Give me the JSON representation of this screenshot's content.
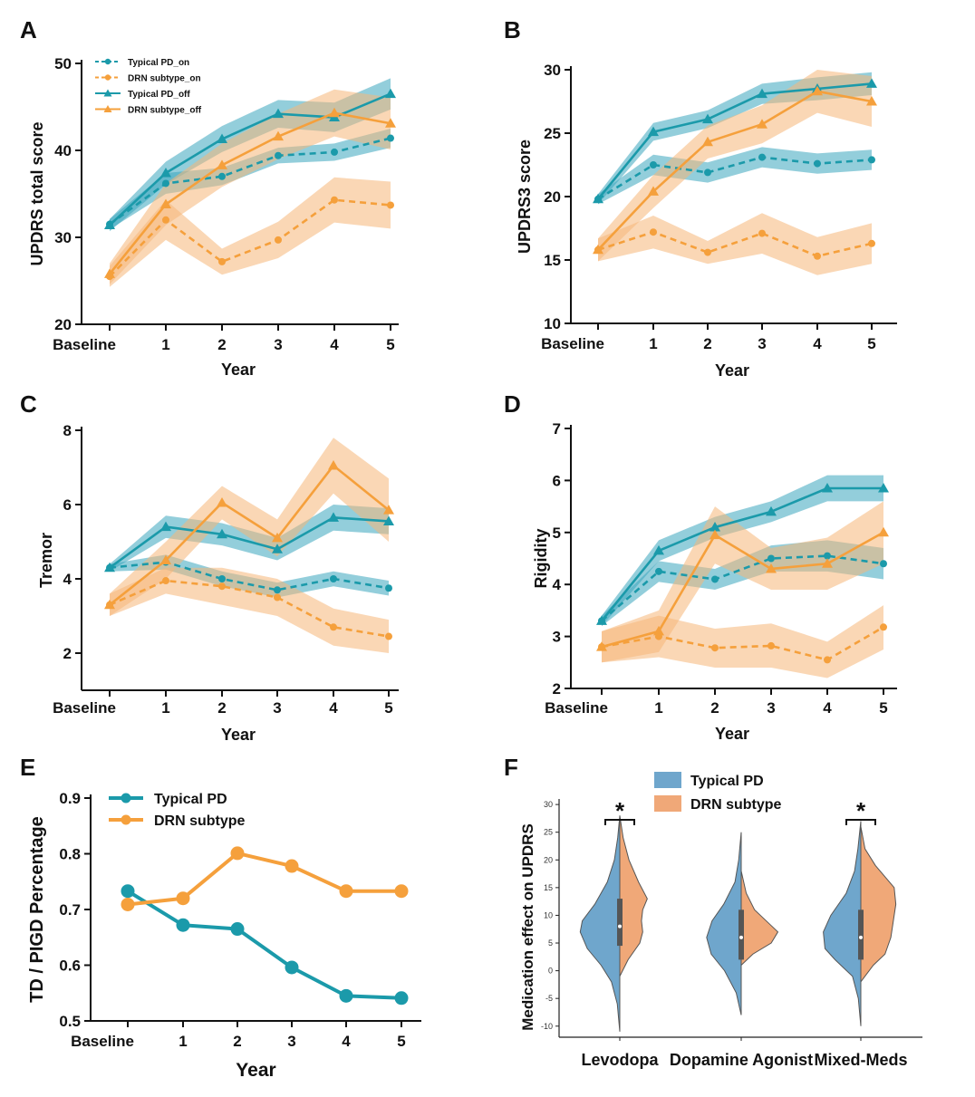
{
  "colors": {
    "typical": "#1b9aaa",
    "drn": "#f5a03c",
    "typical_band": "#3aa6bd",
    "drn_band": "#f6b679",
    "violin_typical": "#6fa6cc",
    "violin_drn": "#f0a878"
  },
  "panels": {
    "A": "A",
    "B": "B",
    "C": "C",
    "D": "D",
    "E": "E",
    "F": "F"
  },
  "chart_data": [
    {
      "panel": "A",
      "type": "line",
      "categories": [
        "Baseline",
        "1",
        "2",
        "3",
        "4",
        "5"
      ],
      "xlabel": "Year",
      "ylabel": "UPDRS total score",
      "ylim": [
        20,
        50
      ],
      "yticks": [
        20,
        30,
        40,
        50
      ],
      "legend": {
        "position": "top-left"
      },
      "series": [
        {
          "name": "Typical PD_on",
          "color": "typical",
          "dashed": true,
          "marker": "circle",
          "values": [
            31.5,
            36.2,
            37.0,
            39.4,
            39.8,
            41.4
          ],
          "lower": [
            30.9,
            35.0,
            36.0,
            38.5,
            38.8,
            40.3
          ],
          "upper": [
            32.1,
            37.4,
            38.0,
            40.3,
            40.8,
            42.5
          ]
        },
        {
          "name": "DRN subtype_on",
          "color": "drn",
          "dashed": true,
          "marker": "circle",
          "values": [
            25.5,
            32.0,
            27.2,
            29.7,
            34.3,
            33.7
          ],
          "lower": [
            24.3,
            29.7,
            25.7,
            27.6,
            31.7,
            31.0
          ],
          "upper": [
            26.7,
            34.3,
            28.7,
            31.8,
            36.9,
            36.4
          ]
        },
        {
          "name": "Typical PD_off",
          "color": "typical",
          "dashed": false,
          "marker": "triangle",
          "values": [
            31.4,
            37.4,
            41.3,
            44.2,
            43.8,
            46.5
          ],
          "lower": [
            30.7,
            36.1,
            39.8,
            42.6,
            42.1,
            44.7
          ],
          "upper": [
            32.1,
            38.7,
            42.8,
            45.8,
            45.5,
            48.3
          ]
        },
        {
          "name": "DRN subtype_off",
          "color": "drn",
          "dashed": false,
          "marker": "triangle",
          "values": [
            25.8,
            33.8,
            38.3,
            41.6,
            44.3,
            43.1
          ],
          "lower": [
            24.6,
            31.4,
            35.8,
            39.0,
            41.6,
            40.1
          ],
          "upper": [
            27.0,
            36.2,
            40.8,
            44.2,
            47.0,
            46.1
          ]
        }
      ]
    },
    {
      "panel": "B",
      "type": "line",
      "categories": [
        "Baseline",
        "1",
        "2",
        "3",
        "4",
        "5"
      ],
      "xlabel": "Year",
      "ylabel": "UPDRS3 score",
      "ylim": [
        10,
        30
      ],
      "yticks": [
        10,
        15,
        20,
        25,
        30
      ],
      "series": [
        {
          "name": "Typical PD_on",
          "color": "typical",
          "dashed": true,
          "marker": "circle",
          "values": [
            19.8,
            22.5,
            21.9,
            23.1,
            22.6,
            22.9
          ],
          "lower": [
            19.4,
            21.7,
            21.1,
            22.3,
            21.8,
            22.1
          ],
          "upper": [
            20.2,
            23.3,
            22.7,
            23.9,
            23.4,
            23.7
          ]
        },
        {
          "name": "DRN subtype_on",
          "color": "drn",
          "dashed": true,
          "marker": "circle",
          "values": [
            15.8,
            17.2,
            15.6,
            17.1,
            15.3,
            16.3
          ],
          "lower": [
            14.9,
            15.9,
            14.7,
            15.5,
            13.8,
            14.7
          ],
          "upper": [
            16.7,
            18.5,
            16.5,
            18.7,
            16.8,
            17.9
          ]
        },
        {
          "name": "Typical PD_off",
          "color": "typical",
          "dashed": false,
          "marker": "triangle",
          "values": [
            19.8,
            25.1,
            26.1,
            28.1,
            28.5,
            28.9
          ],
          "lower": [
            19.4,
            24.4,
            25.4,
            27.3,
            27.6,
            28.0
          ],
          "upper": [
            20.2,
            25.8,
            26.8,
            28.9,
            29.4,
            29.8
          ]
        },
        {
          "name": "DRN subtype_off",
          "color": "drn",
          "dashed": false,
          "marker": "triangle",
          "values": [
            15.8,
            20.4,
            24.3,
            25.7,
            28.3,
            27.5
          ],
          "lower": [
            14.9,
            19.1,
            23.0,
            24.2,
            26.6,
            25.5
          ],
          "upper": [
            16.7,
            21.7,
            25.6,
            27.2,
            30.0,
            29.5
          ]
        }
      ]
    },
    {
      "panel": "C",
      "type": "line",
      "categories": [
        "Baseline",
        "1",
        "2",
        "3",
        "4",
        "5"
      ],
      "xlabel": "Year",
      "ylabel": "Tremor",
      "ylim": [
        1,
        8
      ],
      "yticks": [
        2,
        4,
        6,
        8
      ],
      "series": [
        {
          "name": "Typical PD_on",
          "color": "typical",
          "dashed": true,
          "marker": "circle",
          "values": [
            4.3,
            4.45,
            4.0,
            3.7,
            4.0,
            3.75
          ],
          "lower": [
            4.2,
            4.25,
            3.8,
            3.5,
            3.8,
            3.55
          ],
          "upper": [
            4.4,
            4.65,
            4.2,
            3.9,
            4.2,
            3.95
          ]
        },
        {
          "name": "DRN subtype_on",
          "color": "drn",
          "dashed": true,
          "marker": "circle",
          "values": [
            3.3,
            3.95,
            3.8,
            3.5,
            2.7,
            2.45
          ],
          "lower": [
            3.0,
            3.6,
            3.3,
            3.0,
            2.2,
            2.0
          ],
          "upper": [
            3.6,
            4.3,
            4.3,
            4.0,
            3.2,
            2.9
          ]
        },
        {
          "name": "Typical PD_off",
          "color": "typical",
          "dashed": false,
          "marker": "triangle",
          "values": [
            4.3,
            5.4,
            5.2,
            4.8,
            5.65,
            5.55
          ],
          "lower": [
            4.2,
            5.1,
            4.9,
            4.5,
            5.3,
            5.2
          ],
          "upper": [
            4.4,
            5.7,
            5.5,
            5.1,
            6.0,
            5.9
          ]
        },
        {
          "name": "DRN subtype_off",
          "color": "drn",
          "dashed": false,
          "marker": "triangle",
          "values": [
            3.3,
            4.5,
            6.05,
            5.1,
            7.05,
            5.85
          ],
          "lower": [
            3.0,
            4.0,
            5.6,
            4.6,
            6.3,
            5.0
          ],
          "upper": [
            3.6,
            5.0,
            6.5,
            5.6,
            7.8,
            6.7
          ]
        }
      ]
    },
    {
      "panel": "D",
      "type": "line",
      "categories": [
        "Baseline",
        "1",
        "2",
        "3",
        "4",
        "5"
      ],
      "xlabel": "Year",
      "ylabel": "Rigidity",
      "ylim": [
        2,
        7
      ],
      "yticks": [
        2,
        3,
        4,
        5,
        6,
        7
      ],
      "series": [
        {
          "name": "Typical PD_on",
          "color": "typical",
          "dashed": true,
          "marker": "circle",
          "values": [
            3.3,
            4.25,
            4.1,
            4.5,
            4.55,
            4.4
          ],
          "lower": [
            3.2,
            4.05,
            3.9,
            4.25,
            4.25,
            4.1
          ],
          "upper": [
            3.4,
            4.45,
            4.3,
            4.75,
            4.85,
            4.7
          ]
        },
        {
          "name": "DRN subtype_on",
          "color": "drn",
          "dashed": true,
          "marker": "circle",
          "values": [
            2.8,
            3.0,
            2.78,
            2.82,
            2.55,
            3.18
          ],
          "lower": [
            2.5,
            2.6,
            2.4,
            2.4,
            2.2,
            2.75
          ],
          "upper": [
            3.1,
            3.4,
            3.15,
            3.25,
            2.9,
            3.6
          ]
        },
        {
          "name": "Typical PD_off",
          "color": "typical",
          "dashed": false,
          "marker": "triangle",
          "values": [
            3.3,
            4.65,
            5.1,
            5.4,
            5.85,
            5.85
          ],
          "lower": [
            3.2,
            4.45,
            4.9,
            5.2,
            5.6,
            5.6
          ],
          "upper": [
            3.4,
            4.85,
            5.3,
            5.6,
            6.1,
            6.1
          ]
        },
        {
          "name": "DRN subtype_off",
          "color": "drn",
          "dashed": false,
          "marker": "triangle",
          "values": [
            2.8,
            3.1,
            4.95,
            4.3,
            4.4,
            5.0
          ],
          "lower": [
            2.5,
            2.7,
            4.4,
            3.9,
            3.9,
            4.4
          ],
          "upper": [
            3.1,
            3.5,
            5.5,
            4.7,
            4.9,
            5.6
          ]
        }
      ]
    },
    {
      "panel": "E",
      "type": "line",
      "categories": [
        "Baseline",
        "1",
        "2",
        "3",
        "4",
        "5"
      ],
      "xlabel": "Year",
      "ylabel": "TD / PIGD Percentage",
      "ylim": [
        0.5,
        0.9
      ],
      "yticks": [
        0.5,
        0.6,
        0.7,
        0.8,
        0.9
      ],
      "legend": {
        "position": "top-left"
      },
      "series": [
        {
          "name": "Typical PD",
          "color": "typical",
          "values": [
            0.733,
            0.672,
            0.665,
            0.596,
            0.545,
            0.541
          ]
        },
        {
          "name": "DRN subtype",
          "color": "drn",
          "values": [
            0.709,
            0.72,
            0.801,
            0.778,
            0.733,
            0.733
          ]
        }
      ]
    },
    {
      "panel": "F",
      "type": "violin",
      "categories": [
        "Levodopa",
        "Dopamine Agonist",
        "Mixed-Meds"
      ],
      "ylabel": "Medication effect on UPDRS",
      "ylim": [
        -12,
        31
      ],
      "yticks": [
        -10,
        -5,
        0,
        5,
        10,
        15,
        20,
        25,
        30
      ],
      "legend": {
        "position": "top-center"
      },
      "significance": [
        "*",
        "",
        "*"
      ],
      "series": [
        {
          "name": "Typical PD",
          "color": "violin_typical",
          "groups": [
            {
              "min": -11,
              "max": 28,
              "median": 8.0,
              "q1": 4.5,
              "q3": 13.0,
              "profile": [
                [
                  -11,
                  0.0
                ],
                [
                  -6,
                  0.06
                ],
                [
                  -2,
                  0.2
                ],
                [
                  1,
                  0.45
                ],
                [
                  4,
                  0.78
                ],
                [
                  7,
                  0.95
                ],
                [
                  9,
                  0.9
                ],
                [
                  12,
                  0.6
                ],
                [
                  16,
                  0.3
                ],
                [
                  20,
                  0.13
                ],
                [
                  24,
                  0.05
                ],
                [
                  28,
                  0.0
                ]
              ]
            },
            {
              "min": -8,
              "max": 25,
              "median": 6.0,
              "q1": 2.0,
              "q3": 11.0,
              "profile": [
                [
                  -8,
                  0.0
                ],
                [
                  -4,
                  0.12
                ],
                [
                  0,
                  0.4
                ],
                [
                  3,
                  0.72
                ],
                [
                  6,
                  0.83
                ],
                [
                  9,
                  0.7
                ],
                [
                  12,
                  0.42
                ],
                [
                  16,
                  0.15
                ],
                [
                  20,
                  0.06
                ],
                [
                  25,
                  0.0
                ]
              ]
            },
            {
              "min": -10,
              "max": 27,
              "median": 6.0,
              "q1": 2.0,
              "q3": 11.0,
              "profile": [
                [
                  -10,
                  0.0
                ],
                [
                  -5,
                  0.06
                ],
                [
                  -1,
                  0.2
                ],
                [
                  2,
                  0.62
                ],
                [
                  4,
                  0.86
                ],
                [
                  7,
                  0.9
                ],
                [
                  10,
                  0.72
                ],
                [
                  14,
                  0.35
                ],
                [
                  18,
                  0.15
                ],
                [
                  22,
                  0.07
                ],
                [
                  27,
                  0.0
                ]
              ]
            }
          ]
        },
        {
          "name": "DRN subtype",
          "color": "violin_drn",
          "groups": [
            {
              "min": -1,
              "max": 28,
              "median": 8.0,
              "q1": 4.5,
              "q3": 13.0,
              "profile": [
                [
                  -1,
                  0.0
                ],
                [
                  2,
                  0.2
                ],
                [
                  5,
                  0.48
                ],
                [
                  7,
                  0.55
                ],
                [
                  9,
                  0.52
                ],
                [
                  11,
                  0.55
                ],
                [
                  13,
                  0.66
                ],
                [
                  16,
                  0.45
                ],
                [
                  20,
                  0.22
                ],
                [
                  24,
                  0.08
                ],
                [
                  28,
                  0.0
                ]
              ]
            },
            {
              "min": 1,
              "max": 18,
              "median": 6.0,
              "q1": 2.0,
              "q3": 11.0,
              "profile": [
                [
                  1,
                  0.0
                ],
                [
                  3,
                  0.28
                ],
                [
                  5,
                  0.72
                ],
                [
                  7,
                  0.88
                ],
                [
                  9,
                  0.6
                ],
                [
                  11,
                  0.32
                ],
                [
                  14,
                  0.12
                ],
                [
                  18,
                  0.0
                ]
              ]
            },
            {
              "min": -2,
              "max": 26,
              "median": 6.0,
              "q1": 2.0,
              "q3": 11.0,
              "profile": [
                [
                  -2,
                  0.0
                ],
                [
                  1,
                  0.3
                ],
                [
                  3,
                  0.58
                ],
                [
                  6,
                  0.72
                ],
                [
                  9,
                  0.78
                ],
                [
                  12,
                  0.84
                ],
                [
                  15,
                  0.8
                ],
                [
                  19,
                  0.35
                ],
                [
                  22,
                  0.1
                ],
                [
                  26,
                  0.0
                ]
              ]
            }
          ]
        }
      ]
    }
  ]
}
